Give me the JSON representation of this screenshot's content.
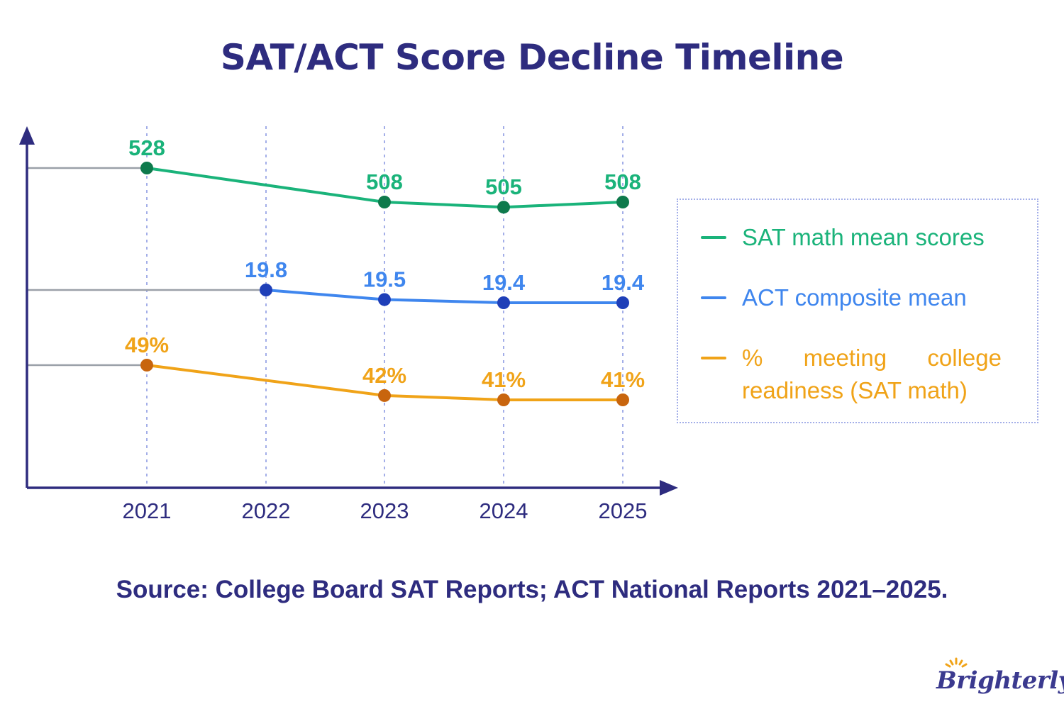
{
  "title": "SAT/ACT Score Decline Timeline",
  "source": "Source: College Board SAT Reports; ACT National Reports 2021–2025.",
  "brand": "Brighterly",
  "colors": {
    "axis": "#2e2c7f",
    "grid": "#a3aee8",
    "baseline": "#9aa0a8",
    "sat_line": "#1ab37a",
    "sat_point": "#0e7a4c",
    "act_line": "#3f86ee",
    "act_point": "#1f3fb8",
    "pct_line": "#f0a318",
    "pct_point": "#c8650e"
  },
  "legend": [
    {
      "label": "SAT math mean scores",
      "color": "#1ab37a"
    },
    {
      "label": "ACT composite mean",
      "color": "#3f86ee"
    },
    {
      "label_lines": [
        "% meeting college",
        "readiness (SAT math)"
      ],
      "color": "#f0a318"
    }
  ],
  "chart_data": {
    "type": "line",
    "title": "SAT/ACT Score Decline Timeline",
    "categories": [
      "2021",
      "2022",
      "2023",
      "2024",
      "2025"
    ],
    "series": [
      {
        "name": "SAT math mean scores",
        "values": [
          528,
          null,
          508,
          505,
          508
        ],
        "labels": [
          "528",
          "",
          "508",
          "505",
          "508"
        ]
      },
      {
        "name": "ACT composite mean",
        "values": [
          null,
          19.8,
          19.5,
          19.4,
          19.4
        ],
        "labels": [
          "",
          "19.8",
          "19.5",
          "19.4",
          "19.4"
        ]
      },
      {
        "name": "% meeting college readiness (SAT math)",
        "values": [
          49,
          null,
          42,
          41,
          41
        ],
        "labels": [
          "49%",
          "",
          "42%",
          "41%",
          "41%"
        ]
      }
    ],
    "grid": "vertical dotted at each year",
    "legend_position": "right"
  }
}
